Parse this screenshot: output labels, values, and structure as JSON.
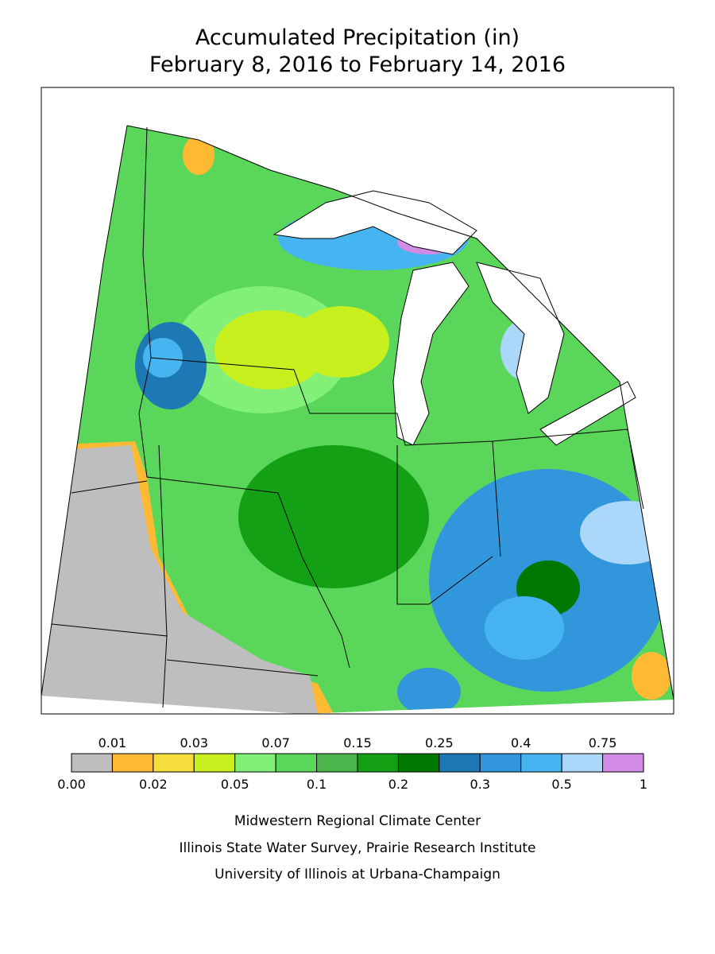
{
  "header": {
    "title": "Accumulated Precipitation (in)",
    "subtitle": "February 8, 2016 to February 14, 2016"
  },
  "legend": {
    "colors": [
      "#bebebe",
      "#ffb932",
      "#f5de3c",
      "#c8f01e",
      "#82f078",
      "#5ad75a",
      "#4bb44b",
      "#14a014",
      "#007800",
      "#1e78b4",
      "#3296dc",
      "#46b4f0",
      "#aad7fa",
      "#d28ce6"
    ],
    "top_labels": [
      "0.01",
      "0.03",
      "0.07",
      "0.15",
      "0.25",
      "0.4",
      "0.75"
    ],
    "bottom_labels": [
      "0.00",
      "0.02",
      "0.05",
      "0.1",
      "0.2",
      "0.3",
      "0.5",
      "1"
    ]
  },
  "credits": [
    "Midwestern Regional Climate Center",
    "Illinois State Water Survey, Prairie Research Institute",
    "University of Illinois at Urbana-Champaign"
  ]
}
